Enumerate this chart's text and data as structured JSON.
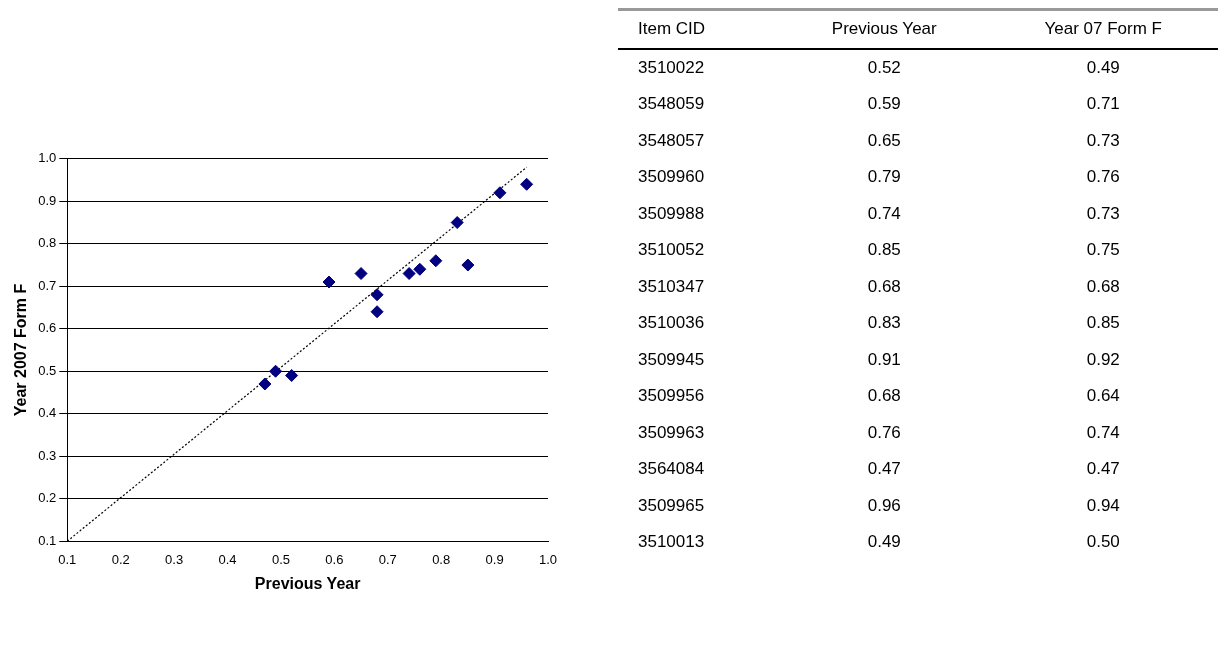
{
  "chart_data": [
    {
      "type": "scatter",
      "xlabel": "Previous Year",
      "ylabel": "Year 2007 Form F",
      "series": [
        {
          "type": "scatter",
          "color": "#000080",
          "x": [
            0.52,
            0.59,
            0.65,
            0.79,
            0.74,
            0.85,
            0.68,
            0.83,
            0.91,
            0.68,
            0.76,
            0.47,
            0.96,
            0.49
          ],
          "values": [
            0.49,
            0.71,
            0.73,
            0.76,
            0.73,
            0.75,
            0.68,
            0.85,
            0.92,
            0.64,
            0.74,
            0.47,
            0.94,
            0.5
          ]
        },
        {
          "type": "line",
          "color": "#000000",
          "line_style": "dotted",
          "marker": "none",
          "x": [
            0.1,
            0.96
          ],
          "values": [
            0.1,
            0.98
          ]
        }
      ],
      "xlim": [
        0.1,
        1.0
      ],
      "ylim": [
        0.1,
        1.0
      ],
      "xticks": [
        0.1,
        0.2,
        0.3,
        0.4,
        0.5,
        0.6,
        0.7,
        0.8,
        0.9,
        {
          "value": 1.0,
          "label": "1.0"
        }
      ],
      "yticks": [
        0.1,
        0.2,
        0.3,
        0.4,
        0.5,
        0.6,
        0.7,
        0.8,
        0.9,
        {
          "value": 1.0,
          "label": "1.0"
        }
      ],
      "grid": "y",
      "legend": false,
      "marker": "diamond"
    },
    {
      "type": "other",
      "annotations": [
        "Item CID"
      ],
      "categories": [
        "3510022",
        "3548059",
        "3548057",
        "3509960",
        "3509988",
        "3510052",
        "3510347",
        "3510036",
        "3509945",
        "3509956",
        "3509963",
        "3564084",
        "3509965",
        "3510013"
      ],
      "series": [
        {
          "name": "Previous Year",
          "values": [
            0.52,
            0.59,
            0.65,
            0.79,
            0.74,
            0.85,
            0.68,
            0.83,
            0.91,
            0.68,
            0.76,
            0.47,
            0.96,
            0.49
          ]
        },
        {
          "name": "Year 07 Form F",
          "values": [
            0.49,
            0.71,
            0.73,
            0.76,
            0.73,
            0.75,
            0.68,
            0.85,
            0.92,
            0.64,
            0.74,
            0.47,
            0.94,
            0.5
          ],
          "value_labels": [
            "0.49",
            "0.71",
            "0.73",
            "0.76",
            "0.73",
            "0.75",
            "0.68",
            "0.85",
            "0.92",
            "0.64",
            "0.74",
            "0.47",
            "0.94",
            "0.50"
          ]
        }
      ],
      "data_labels": true
    }
  ]
}
